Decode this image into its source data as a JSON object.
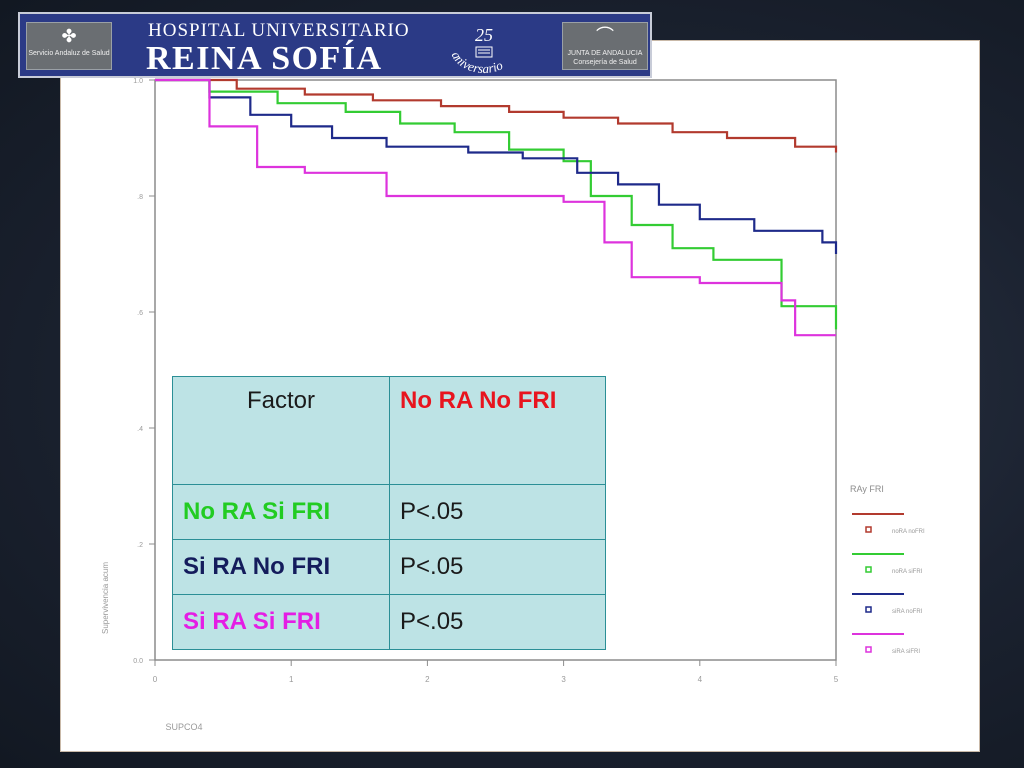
{
  "banner": {
    "line1": "HOSPITAL UNIVERSITARIO",
    "line2": "REINA SOFÍA",
    "left_logo_text": "Servicio Andaluz de Salud",
    "right_logo_text_1": "JUNTA DE ANDALUCIA",
    "right_logo_text_2": "Consejería de Salud",
    "anniversary_number": "25",
    "anniversary_word": "aniversario",
    "color": "#2b3a86"
  },
  "chart_data": {
    "type": "line",
    "xlim": [
      0,
      5
    ],
    "ylim": [
      0,
      1
    ],
    "x_ticks": [
      "0",
      "1",
      "2",
      "3",
      "4",
      "5"
    ],
    "y_ticks": [
      "0.0",
      ".2",
      ".4",
      ".6",
      ".8",
      "1.0"
    ],
    "xlabel": "SUPCO4",
    "ylabel": "Supervivencia acum",
    "legend_title": "RAy FRI",
    "legend_position": "right",
    "series": [
      {
        "name": "noRA noFRI",
        "color": "#b23a2e",
        "points": [
          [
            0,
            1.0
          ],
          [
            0.6,
            0.985
          ],
          [
            1.1,
            0.975
          ],
          [
            1.6,
            0.965
          ],
          [
            2.1,
            0.955
          ],
          [
            2.6,
            0.945
          ],
          [
            3.0,
            0.935
          ],
          [
            3.4,
            0.925
          ],
          [
            3.8,
            0.91
          ],
          [
            4.2,
            0.9
          ],
          [
            4.7,
            0.885
          ],
          [
            5.0,
            0.875
          ]
        ]
      },
      {
        "name": "noRA siFRI",
        "color": "#33cc33",
        "points": [
          [
            0,
            1.0
          ],
          [
            0.4,
            0.98
          ],
          [
            0.9,
            0.96
          ],
          [
            1.4,
            0.945
          ],
          [
            1.8,
            0.925
          ],
          [
            2.2,
            0.91
          ],
          [
            2.6,
            0.88
          ],
          [
            3.0,
            0.86
          ],
          [
            3.2,
            0.8
          ],
          [
            3.5,
            0.75
          ],
          [
            3.8,
            0.71
          ],
          [
            4.1,
            0.69
          ],
          [
            4.6,
            0.61
          ],
          [
            5.0,
            0.57
          ]
        ]
      },
      {
        "name": "siRA noFRI",
        "color": "#1e2a8a",
        "points": [
          [
            0,
            1.0
          ],
          [
            0.4,
            0.97
          ],
          [
            0.7,
            0.94
          ],
          [
            1.0,
            0.92
          ],
          [
            1.3,
            0.9
          ],
          [
            1.7,
            0.885
          ],
          [
            2.3,
            0.875
          ],
          [
            2.7,
            0.865
          ],
          [
            3.1,
            0.84
          ],
          [
            3.4,
            0.82
          ],
          [
            3.7,
            0.785
          ],
          [
            4.0,
            0.76
          ],
          [
            4.4,
            0.74
          ],
          [
            4.9,
            0.72
          ],
          [
            5.0,
            0.7
          ]
        ]
      },
      {
        "name": "siRA siFRI",
        "color": "#dd33dd",
        "points": [
          [
            0,
            1.0
          ],
          [
            0.4,
            0.92
          ],
          [
            0.75,
            0.85
          ],
          [
            1.1,
            0.84
          ],
          [
            1.7,
            0.8
          ],
          [
            2.5,
            0.8
          ],
          [
            3.0,
            0.79
          ],
          [
            3.3,
            0.72
          ],
          [
            3.5,
            0.66
          ],
          [
            4.0,
            0.65
          ],
          [
            4.6,
            0.62
          ],
          [
            4.7,
            0.56
          ],
          [
            5.0,
            0.56
          ]
        ]
      }
    ]
  },
  "table": {
    "header_factor": "Factor",
    "header_ref": "No RA No FRI",
    "rows": [
      {
        "label": "No RA Si FRI",
        "p": "P<.05",
        "color": "#22cc22"
      },
      {
        "label": "Si RA No FRI",
        "p": "P<.05",
        "color": "#141c5c"
      },
      {
        "label": "Si RA Si FRI",
        "p": "P<.05",
        "color": "#e41ee4"
      }
    ]
  }
}
